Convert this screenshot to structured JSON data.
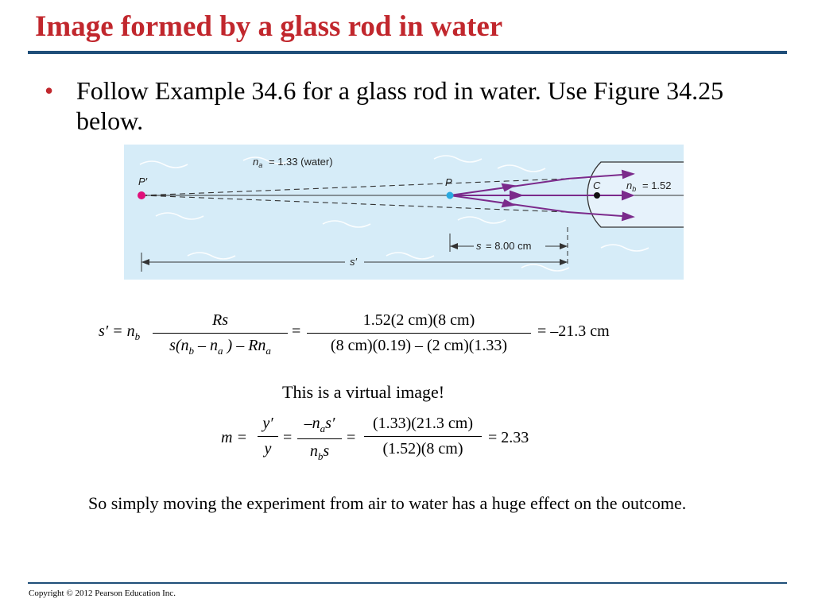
{
  "slide": {
    "title": "Image formed by a glass rod in water",
    "bullet": "Follow Example 34.6 for a glass rod in water. Use Figure 34.25 below.",
    "virtual_note": "This is a virtual image!",
    "closing": "So simply moving the experiment from air to water has a huge effect on the outcome.",
    "copyright": "Copyright © 2012 Pearson Education Inc."
  },
  "figure": {
    "na_label": "= 1.33 (water)",
    "nb_label": "= 1.52",
    "p_prime": "P′",
    "p": "P",
    "c": "C",
    "s_label": "s",
    "s_value": "= 8.00 cm",
    "s_prime_label": "s′",
    "colors": {
      "background": "#d6ecf8",
      "ray": "#7b2a8b",
      "point_p": "#29a9e0",
      "point_p_prime": "#e0107a"
    }
  },
  "equations": {
    "eq1": {
      "lhs": "s′ = n",
      "lhs_sub": "b",
      "frac1_num": "Rs",
      "frac1_den": "s(n",
      "frac2_num": "1.52(2 cm)(8 cm)",
      "frac2_den": "(8 cm)(0.19) – (2 cm)(1.33)",
      "result": "= –21.3 cm"
    },
    "eq2": {
      "lhs": "m =",
      "frac1_num": "y′",
      "frac1_den": "y",
      "frac3_num": "(1.33)(21.3 cm)",
      "frac3_den": "(1.52)(8 cm)",
      "result": "= 2.33"
    }
  }
}
